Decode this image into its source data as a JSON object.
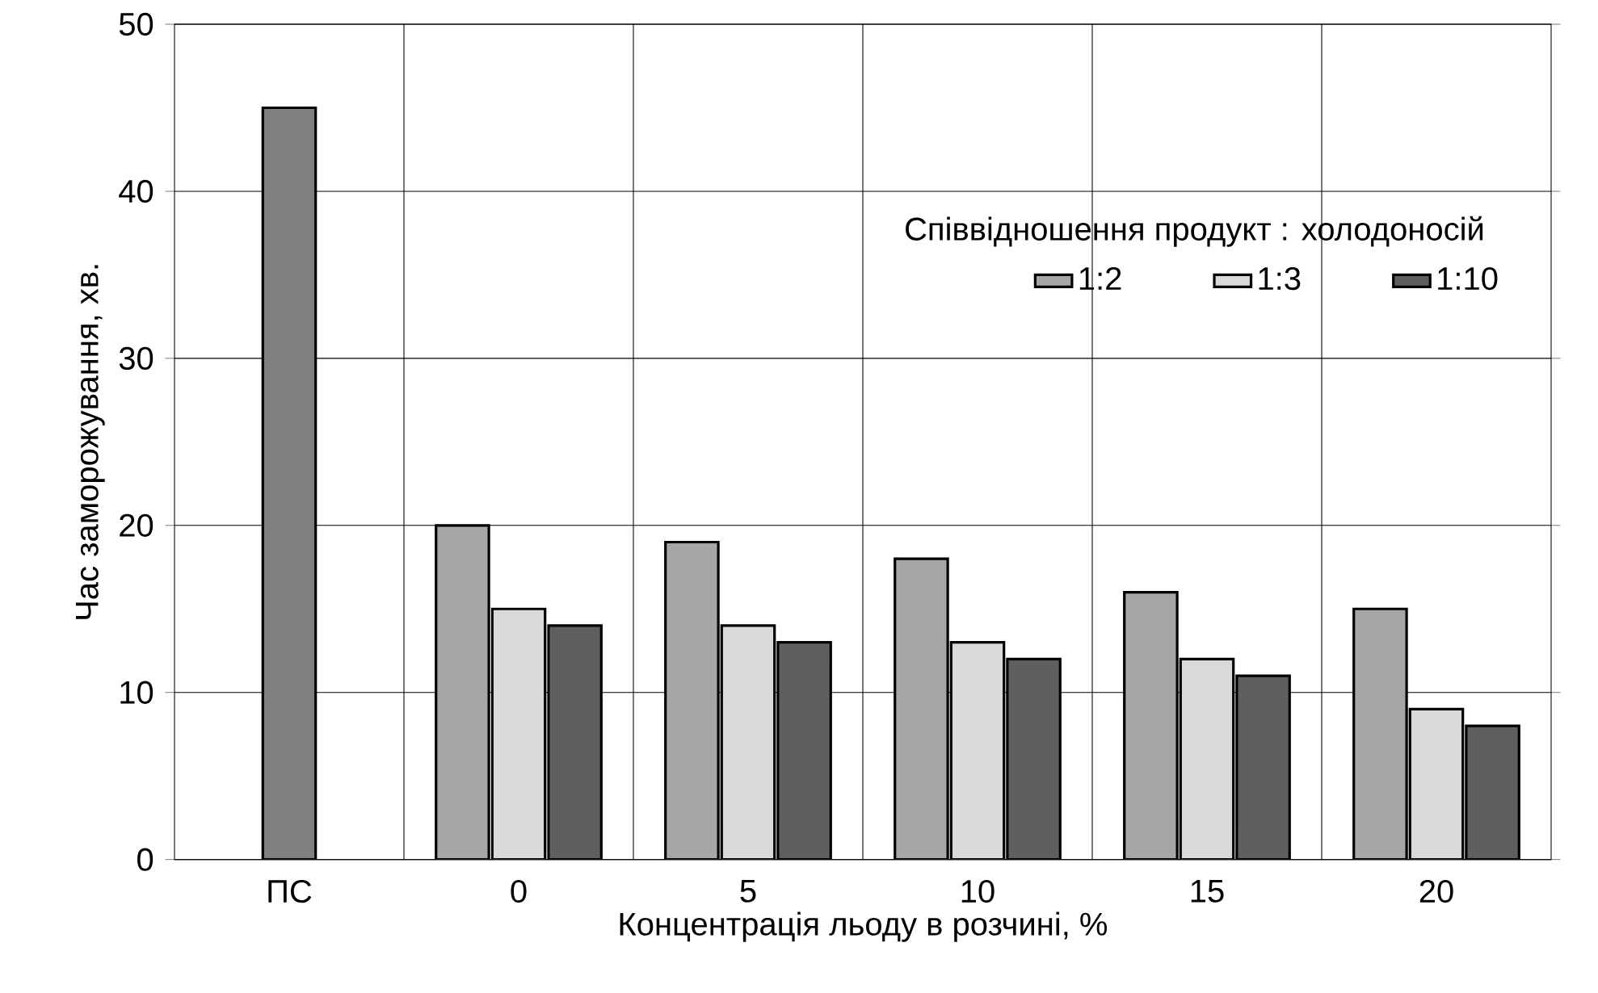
{
  "chart_data": {
    "type": "bar",
    "xlabel": "Концентрація льоду в розчині, %",
    "ylabel": "Час заморожування, хв.",
    "legend_title": "Співвідношення продукт : холодоносій",
    "categories": [
      "ПС",
      "0",
      "5",
      "10",
      "15",
      "20"
    ],
    "series": [
      {
        "color": "#808080",
        "values": [
          45,
          null,
          null,
          null,
          null,
          null
        ]
      },
      {
        "name": "1:2",
        "color": "#a6a6a6",
        "values": [
          null,
          20,
          19,
          18,
          16,
          15
        ]
      },
      {
        "name": "1:3",
        "color": "#d9d9d9",
        "values": [
          null,
          15,
          14,
          13,
          12,
          9
        ]
      },
      {
        "name": "1:10",
        "color": "#5f5f5f",
        "values": [
          null,
          14,
          13,
          12,
          11,
          8
        ]
      }
    ],
    "ylim": [
      0,
      50
    ],
    "yticks": [
      0,
      10,
      20,
      30,
      40,
      50
    ],
    "grid": true,
    "legend": "top right"
  }
}
